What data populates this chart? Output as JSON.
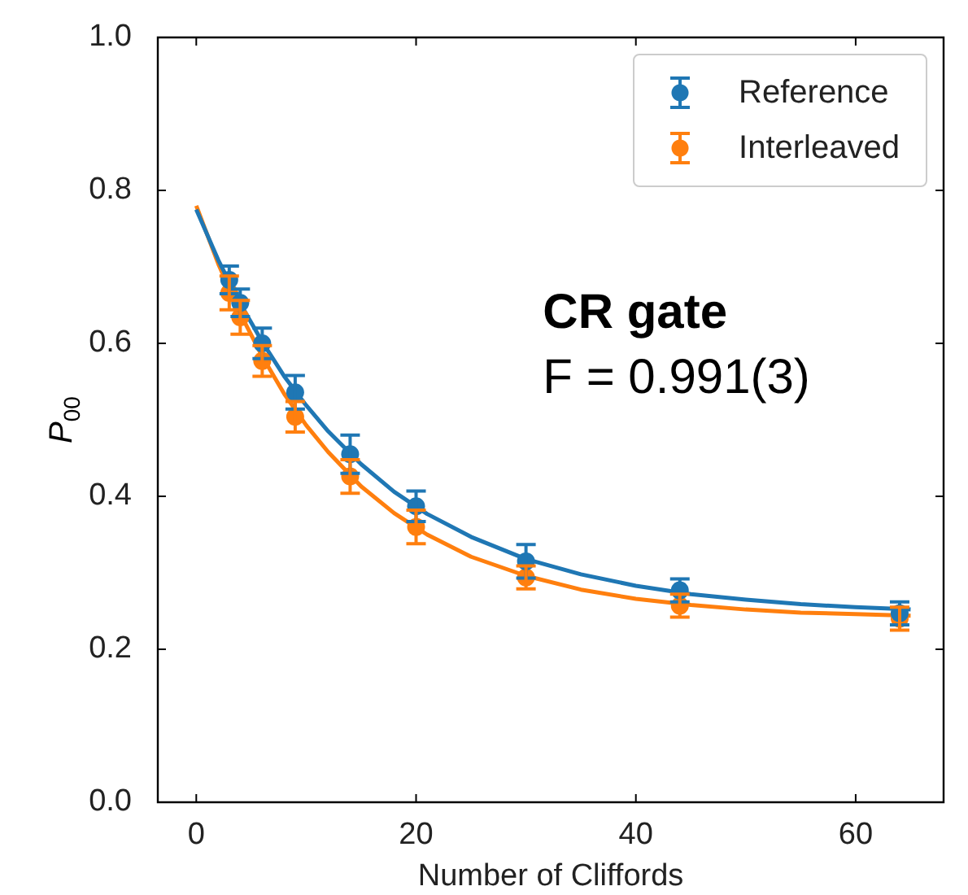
{
  "chart_data": {
    "type": "scatter",
    "xlabel": "Number of Cliffords",
    "ylabel": "P$_{00}$",
    "xlim": [
      -3.5,
      68
    ],
    "ylim": [
      0,
      1
    ],
    "xticks": [
      0,
      20,
      40,
      60
    ],
    "yticks": [
      {
        "value": 0,
        "label": "0.0"
      },
      {
        "value": 0.2,
        "label": "0.2"
      },
      {
        "value": 0.4,
        "label": "0.4"
      },
      {
        "value": 0.6,
        "label": "0.6"
      },
      {
        "value": 0.8,
        "label": "0.8"
      },
      {
        "value": 1,
        "label": "1.0"
      }
    ],
    "grid": false,
    "legend": "top right",
    "marker": "circle",
    "annotations": [
      "CR gate",
      "F = 0.991(3)"
    ],
    "series": [
      {
        "name": "Reference",
        "color": "#1f77b4",
        "x": [
          3,
          4,
          6,
          9,
          14,
          20,
          30,
          44,
          64
        ],
        "values": [
          0.683,
          0.653,
          0.6,
          0.536,
          0.455,
          0.387,
          0.315,
          0.277,
          0.247
        ],
        "errors": [
          0.018,
          0.018,
          0.02,
          0.022,
          0.025,
          0.02,
          0.022,
          0.015,
          0.015
        ]
      },
      {
        "name": "Interleaved",
        "color": "#ff7f0e",
        "x": [
          3,
          4,
          6,
          9,
          14,
          20,
          30,
          44,
          64
        ],
        "values": [
          0.666,
          0.634,
          0.577,
          0.504,
          0.426,
          0.36,
          0.294,
          0.257,
          0.24
        ],
        "errors": [
          0.022,
          0.022,
          0.02,
          0.02,
          0.022,
          0.022,
          0.015,
          0.015,
          0.015
        ]
      },
      {
        "type": "line",
        "marker": "none",
        "color": "#1f77b4",
        "x": [
          0,
          2,
          4,
          6,
          8,
          10,
          12,
          15,
          18,
          21,
          25,
          30,
          35,
          40,
          45,
          50,
          55,
          60,
          65
        ],
        "values": [
          0.775,
          0.709,
          0.652,
          0.602,
          0.557,
          0.519,
          0.485,
          0.442,
          0.406,
          0.377,
          0.347,
          0.318,
          0.298,
          0.283,
          0.272,
          0.265,
          0.259,
          0.255,
          0.252
        ]
      },
      {
        "type": "line",
        "marker": "none",
        "color": "#ff7f0e",
        "x": [
          0,
          2,
          4,
          6,
          8,
          10,
          12,
          15,
          18,
          21,
          25,
          30,
          35,
          40,
          45,
          50,
          55,
          60,
          65
        ],
        "values": [
          0.78,
          0.704,
          0.639,
          0.583,
          0.534,
          0.493,
          0.458,
          0.413,
          0.378,
          0.35,
          0.321,
          0.296,
          0.278,
          0.266,
          0.258,
          0.252,
          0.248,
          0.246,
          0.244
        ]
      }
    ]
  }
}
